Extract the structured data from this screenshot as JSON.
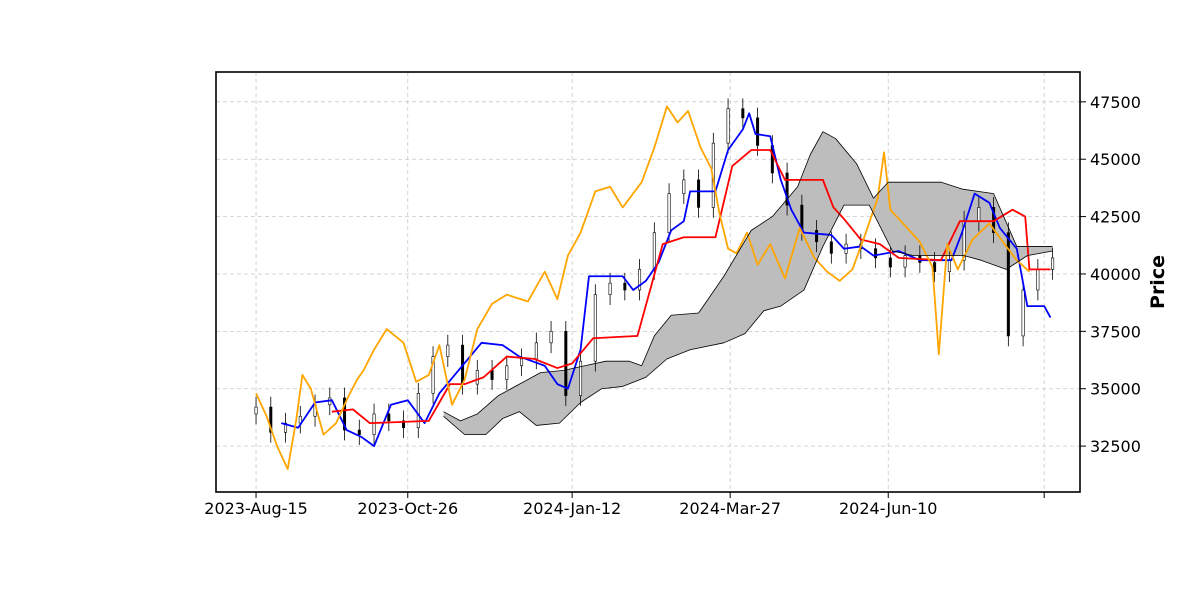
{
  "chart_data": {
    "type": "line",
    "title": "",
    "xlabel": "",
    "ylabel": "Price",
    "ylim": [
      30500,
      48800
    ],
    "y_axis_side": "right",
    "grid": true,
    "legend": "none",
    "x_range": [
      "2023-07-27",
      "2024-09-09"
    ],
    "x_ticks": [
      {
        "date": "2023-08-15",
        "label": "2023-Aug-15"
      },
      {
        "date": "2023-10-26",
        "label": "2023-Oct-26"
      },
      {
        "date": "2024-01-12",
        "label": "2024-Jan-12"
      },
      {
        "date": "2024-03-27",
        "label": "2024-Mar-27"
      },
      {
        "date": "2024-06-10",
        "label": "2024-Jun-10"
      },
      {
        "date": "2024-08-23",
        "label": ""
      }
    ],
    "y_ticks": [
      32500,
      35000,
      37500,
      40000,
      42500,
      45000,
      47500
    ],
    "candles": [
      [
        "2023-08-15",
        34200
      ],
      [
        "2023-08-22",
        33100
      ],
      [
        "2023-08-29",
        33500
      ],
      [
        "2023-09-05",
        33800
      ],
      [
        "2023-09-12",
        34300
      ],
      [
        "2023-09-19",
        34600
      ],
      [
        "2023-09-26",
        33200
      ],
      [
        "2023-10-03",
        33000
      ],
      [
        "2023-10-10",
        33900
      ],
      [
        "2023-10-17",
        33600
      ],
      [
        "2023-10-24",
        33300
      ],
      [
        "2023-10-31",
        34800
      ],
      [
        "2023-11-07",
        36400
      ],
      [
        "2023-11-14",
        36900
      ],
      [
        "2023-11-21",
        35200
      ],
      [
        "2023-11-28",
        35800
      ],
      [
        "2023-12-05",
        35400
      ],
      [
        "2023-12-12",
        36000
      ],
      [
        "2023-12-19",
        36300
      ],
      [
        "2023-12-26",
        37000
      ],
      [
        "2024-01-02",
        37500
      ],
      [
        "2024-01-09",
        34700
      ],
      [
        "2024-01-16",
        36200
      ],
      [
        "2024-01-23",
        39100
      ],
      [
        "2024-01-30",
        39600
      ],
      [
        "2024-02-06",
        39300
      ],
      [
        "2024-02-13",
        40200
      ],
      [
        "2024-02-20",
        41800
      ],
      [
        "2024-02-27",
        43500
      ],
      [
        "2024-03-05",
        44100
      ],
      [
        "2024-03-12",
        42900
      ],
      [
        "2024-03-19",
        45700
      ],
      [
        "2024-03-26",
        47200
      ],
      [
        "2024-04-02",
        46800
      ],
      [
        "2024-04-09",
        45600
      ],
      [
        "2024-04-16",
        44400
      ],
      [
        "2024-04-23",
        43000
      ],
      [
        "2024-04-30",
        41900
      ],
      [
        "2024-05-07",
        41400
      ],
      [
        "2024-05-14",
        40900
      ],
      [
        "2024-05-21",
        41300
      ],
      [
        "2024-05-28",
        41100
      ],
      [
        "2024-06-04",
        40700
      ],
      [
        "2024-06-11",
        40300
      ],
      [
        "2024-06-18",
        40800
      ],
      [
        "2024-06-25",
        40500
      ],
      [
        "2024-07-02",
        40100
      ],
      [
        "2024-07-09",
        40600
      ],
      [
        "2024-07-16",
        42300
      ],
      [
        "2024-07-23",
        42900
      ],
      [
        "2024-07-30",
        41800
      ],
      [
        "2024-08-06",
        37300
      ],
      [
        "2024-08-13",
        39300
      ],
      [
        "2024-08-20",
        40200
      ],
      [
        "2024-08-27",
        40700
      ]
    ],
    "series": [
      {
        "color": "#0000ff",
        "points": [
          [
            "2023-08-27",
            33500
          ],
          [
            "2023-09-04",
            33300
          ],
          [
            "2023-09-12",
            34400
          ],
          [
            "2023-09-20",
            34500
          ],
          [
            "2023-09-27",
            33200
          ],
          [
            "2023-10-04",
            32900
          ],
          [
            "2023-10-10",
            32500
          ],
          [
            "2023-10-18",
            34300
          ],
          [
            "2023-10-26",
            34500
          ],
          [
            "2023-11-03",
            33500
          ],
          [
            "2023-11-10",
            34800
          ],
          [
            "2023-11-20",
            35900
          ],
          [
            "2023-11-30",
            37000
          ],
          [
            "2023-12-10",
            36900
          ],
          [
            "2023-12-18",
            36400
          ],
          [
            "2023-12-30",
            36000
          ],
          [
            "2024-01-05",
            35200
          ],
          [
            "2024-01-10",
            35000
          ],
          [
            "2024-01-16",
            36700
          ],
          [
            "2024-01-20",
            39900
          ],
          [
            "2024-02-05",
            39900
          ],
          [
            "2024-02-10",
            39300
          ],
          [
            "2024-02-16",
            39700
          ],
          [
            "2024-02-22",
            40500
          ],
          [
            "2024-02-28",
            41900
          ],
          [
            "2024-03-05",
            42300
          ],
          [
            "2024-03-08",
            43600
          ],
          [
            "2024-03-20",
            43600
          ],
          [
            "2024-03-26",
            45400
          ],
          [
            "2024-04-02",
            46300
          ],
          [
            "2024-04-05",
            47000
          ],
          [
            "2024-04-08",
            46100
          ],
          [
            "2024-04-15",
            46000
          ],
          [
            "2024-04-20",
            44100
          ],
          [
            "2024-04-25",
            42800
          ],
          [
            "2024-05-01",
            41800
          ],
          [
            "2024-05-14",
            41700
          ],
          [
            "2024-05-20",
            41100
          ],
          [
            "2024-05-28",
            41200
          ],
          [
            "2024-06-03",
            40800
          ],
          [
            "2024-06-15",
            41000
          ],
          [
            "2024-06-25",
            40600
          ],
          [
            "2024-07-10",
            40600
          ],
          [
            "2024-07-15",
            41800
          ],
          [
            "2024-07-21",
            43500
          ],
          [
            "2024-07-28",
            43100
          ],
          [
            "2024-08-02",
            42000
          ],
          [
            "2024-08-10",
            41100
          ],
          [
            "2024-08-15",
            38600
          ],
          [
            "2024-08-23",
            38600
          ],
          [
            "2024-08-26",
            38100
          ]
        ]
      },
      {
        "color": "#ff0000",
        "points": [
          [
            "2023-09-20",
            34000
          ],
          [
            "2023-09-30",
            34100
          ],
          [
            "2023-10-08",
            33500
          ],
          [
            "2023-11-05",
            33600
          ],
          [
            "2023-11-15",
            35200
          ],
          [
            "2023-11-22",
            35200
          ],
          [
            "2023-12-01",
            35500
          ],
          [
            "2023-12-12",
            36400
          ],
          [
            "2023-12-25",
            36300
          ],
          [
            "2024-01-05",
            35900
          ],
          [
            "2024-01-12",
            36100
          ],
          [
            "2024-01-22",
            37200
          ],
          [
            "2024-02-12",
            37300
          ],
          [
            "2024-02-18",
            39300
          ],
          [
            "2024-02-24",
            41300
          ],
          [
            "2024-03-05",
            41600
          ],
          [
            "2024-03-20",
            41600
          ],
          [
            "2024-03-28",
            44700
          ],
          [
            "2024-04-06",
            45400
          ],
          [
            "2024-04-15",
            45400
          ],
          [
            "2024-04-22",
            44100
          ],
          [
            "2024-05-10",
            44100
          ],
          [
            "2024-05-15",
            42900
          ],
          [
            "2024-05-20",
            42400
          ],
          [
            "2024-05-28",
            41500
          ],
          [
            "2024-06-06",
            41300
          ],
          [
            "2024-06-15",
            40700
          ],
          [
            "2024-07-05",
            40600
          ],
          [
            "2024-07-14",
            42300
          ],
          [
            "2024-07-30",
            42300
          ],
          [
            "2024-08-08",
            42800
          ],
          [
            "2024-08-14",
            42500
          ],
          [
            "2024-08-16",
            40200
          ],
          [
            "2024-08-26",
            40200
          ]
        ]
      },
      {
        "color": "#ffa500",
        "points": [
          [
            "2023-08-15",
            34800
          ],
          [
            "2023-08-20",
            33800
          ],
          [
            "2023-08-25",
            32500
          ],
          [
            "2023-08-30",
            31500
          ],
          [
            "2023-09-03",
            33600
          ],
          [
            "2023-09-06",
            35600
          ],
          [
            "2023-09-10",
            35000
          ],
          [
            "2023-09-16",
            33000
          ],
          [
            "2023-09-22",
            33500
          ],
          [
            "2023-09-28",
            34700
          ],
          [
            "2023-10-02",
            35400
          ],
          [
            "2023-10-05",
            35800
          ],
          [
            "2023-10-10",
            36700
          ],
          [
            "2023-10-16",
            37600
          ],
          [
            "2023-10-24",
            37000
          ],
          [
            "2023-10-30",
            35300
          ],
          [
            "2023-11-05",
            35600
          ],
          [
            "2023-11-10",
            36900
          ],
          [
            "2023-11-16",
            34300
          ],
          [
            "2023-11-22",
            35400
          ],
          [
            "2023-11-28",
            37600
          ],
          [
            "2023-12-05",
            38700
          ],
          [
            "2023-12-12",
            39100
          ],
          [
            "2023-12-22",
            38800
          ],
          [
            "2023-12-30",
            40100
          ],
          [
            "2024-01-05",
            38900
          ],
          [
            "2024-01-10",
            40800
          ],
          [
            "2024-01-16",
            41800
          ],
          [
            "2024-01-23",
            43600
          ],
          [
            "2024-01-30",
            43800
          ],
          [
            "2024-02-05",
            42900
          ],
          [
            "2024-02-14",
            44000
          ],
          [
            "2024-02-20",
            45500
          ],
          [
            "2024-02-26",
            47300
          ],
          [
            "2024-03-02",
            46600
          ],
          [
            "2024-03-07",
            47100
          ],
          [
            "2024-03-13",
            45500
          ],
          [
            "2024-03-18",
            44600
          ],
          [
            "2024-03-22",
            42600
          ],
          [
            "2024-03-26",
            41100
          ],
          [
            "2024-03-30",
            40900
          ],
          [
            "2024-04-04",
            41800
          ],
          [
            "2024-04-09",
            40400
          ],
          [
            "2024-04-15",
            41300
          ],
          [
            "2024-04-22",
            39800
          ],
          [
            "2024-04-29",
            42000
          ],
          [
            "2024-05-06",
            40700
          ],
          [
            "2024-05-12",
            40100
          ],
          [
            "2024-05-18",
            39700
          ],
          [
            "2024-05-24",
            40200
          ],
          [
            "2024-05-30",
            41700
          ],
          [
            "2024-06-05",
            43300
          ],
          [
            "2024-06-08",
            45300
          ],
          [
            "2024-06-11",
            42800
          ],
          [
            "2024-06-18",
            42100
          ],
          [
            "2024-06-25",
            41400
          ],
          [
            "2024-07-01",
            40300
          ],
          [
            "2024-07-04",
            36500
          ],
          [
            "2024-07-08",
            41300
          ],
          [
            "2024-07-13",
            40200
          ],
          [
            "2024-07-20",
            41500
          ],
          [
            "2024-07-28",
            42200
          ],
          [
            "2024-08-05",
            41200
          ],
          [
            "2024-08-10",
            40600
          ],
          [
            "2024-08-16",
            40100
          ]
        ]
      },
      {
        "color": "#000000",
        "cloud_upper": true,
        "points": [
          [
            "2023-11-12",
            34000
          ],
          [
            "2023-11-20",
            33600
          ],
          [
            "2023-11-28",
            33900
          ],
          [
            "2023-12-08",
            34700
          ],
          [
            "2023-12-18",
            35200
          ],
          [
            "2023-12-28",
            35700
          ],
          [
            "2024-01-08",
            35800
          ],
          [
            "2024-01-18",
            36000
          ],
          [
            "2024-01-28",
            36200
          ],
          [
            "2024-02-08",
            36200
          ],
          [
            "2024-02-14",
            36000
          ],
          [
            "2024-02-20",
            37300
          ],
          [
            "2024-02-28",
            38200
          ],
          [
            "2024-03-12",
            38300
          ],
          [
            "2024-03-24",
            39900
          ],
          [
            "2024-04-06",
            41900
          ],
          [
            "2024-04-16",
            42500
          ],
          [
            "2024-04-28",
            43800
          ],
          [
            "2024-05-04",
            45200
          ],
          [
            "2024-05-10",
            46200
          ],
          [
            "2024-05-16",
            45900
          ],
          [
            "2024-05-26",
            44800
          ],
          [
            "2024-06-03",
            43300
          ],
          [
            "2024-06-10",
            44000
          ],
          [
            "2024-06-20",
            44000
          ],
          [
            "2024-07-05",
            44000
          ],
          [
            "2024-07-15",
            43700
          ],
          [
            "2024-07-30",
            43500
          ],
          [
            "2024-08-10",
            41200
          ],
          [
            "2024-08-20",
            41200
          ],
          [
            "2024-08-27",
            41200
          ]
        ]
      },
      {
        "color": "#000000",
        "cloud_lower": true,
        "points": [
          [
            "2023-11-12",
            33800
          ],
          [
            "2023-11-22",
            33000
          ],
          [
            "2023-12-02",
            33000
          ],
          [
            "2023-12-10",
            33700
          ],
          [
            "2023-12-18",
            34000
          ],
          [
            "2023-12-26",
            33400
          ],
          [
            "2024-01-06",
            33500
          ],
          [
            "2024-01-16",
            34400
          ],
          [
            "2024-01-26",
            35000
          ],
          [
            "2024-02-05",
            35100
          ],
          [
            "2024-02-16",
            35500
          ],
          [
            "2024-02-26",
            36300
          ],
          [
            "2024-03-08",
            36700
          ],
          [
            "2024-03-24",
            37000
          ],
          [
            "2024-04-03",
            37400
          ],
          [
            "2024-04-12",
            38400
          ],
          [
            "2024-04-20",
            38600
          ],
          [
            "2024-05-01",
            39300
          ],
          [
            "2024-05-10",
            41200
          ],
          [
            "2024-05-20",
            43000
          ],
          [
            "2024-06-01",
            43000
          ],
          [
            "2024-06-12",
            41000
          ],
          [
            "2024-06-22",
            40800
          ],
          [
            "2024-07-05",
            40800
          ],
          [
            "2024-07-16",
            40800
          ],
          [
            "2024-07-24",
            40600
          ],
          [
            "2024-08-05",
            40200
          ],
          [
            "2024-08-15",
            40800
          ],
          [
            "2024-08-27",
            41000
          ]
        ]
      }
    ]
  }
}
